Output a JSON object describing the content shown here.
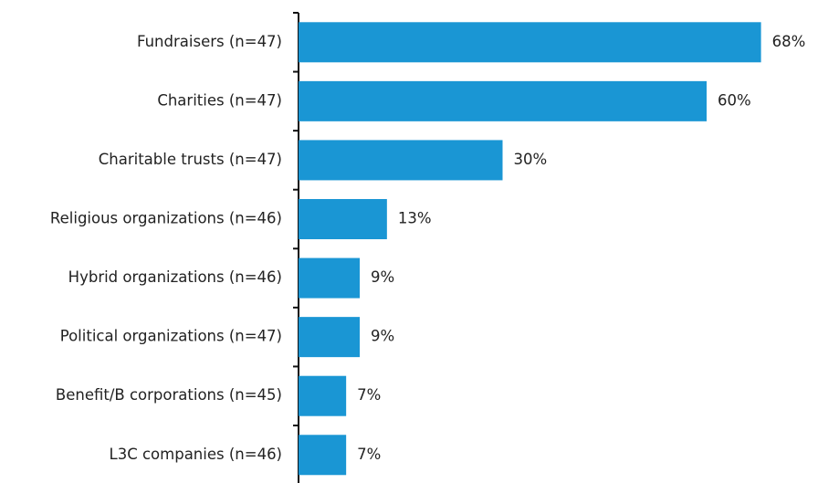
{
  "chart_data": {
    "type": "bar",
    "orientation": "horizontal",
    "categories": [
      "Fundraisers (n=47)",
      "Charities (n=47)",
      "Charitable trusts (n=47)",
      "Religious organizations (n=46)",
      "Hybrid organizations (n=46)",
      "Political organizations (n=47)",
      "Benefit/B corporations (n=45)",
      "L3C companies (n=46)"
    ],
    "values": [
      68,
      60,
      30,
      13,
      9,
      9,
      7,
      7
    ],
    "value_labels": [
      "68%",
      "60%",
      "30%",
      "13%",
      "9%",
      "9%",
      "7%",
      "7%"
    ],
    "color": "#1a96d4"
  }
}
